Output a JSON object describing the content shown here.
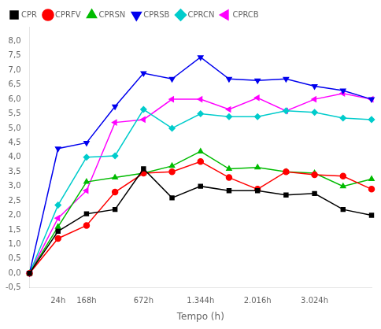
{
  "chart_data": {
    "type": "line",
    "categories": [
      null,
      "24h",
      "168h",
      null,
      "672h",
      null,
      "1.344h",
      null,
      "2.016h",
      null,
      "3.024h",
      null,
      null
    ],
    "series": [
      {
        "name": "CPR",
        "color": "#000000",
        "marker": "square",
        "values": [
          0.0,
          1.45,
          2.05,
          2.2,
          3.6,
          2.6,
          3.0,
          2.85,
          2.85,
          2.7,
          2.75,
          2.2,
          2.0
        ]
      },
      {
        "name": "CPRFV",
        "color": "#ff0000",
        "marker": "circle",
        "values": [
          0.0,
          1.2,
          1.65,
          2.8,
          3.45,
          3.5,
          3.85,
          3.3,
          2.9,
          3.5,
          3.4,
          3.35,
          2.9
        ]
      },
      {
        "name": "CPRSN",
        "color": "#00bb00",
        "marker": "triangle-up",
        "values": [
          0.0,
          1.6,
          3.15,
          3.3,
          3.45,
          3.7,
          4.2,
          3.6,
          3.65,
          3.5,
          3.45,
          3.0,
          3.25
        ]
      },
      {
        "name": "CPRSB",
        "color": "#0000ee",
        "marker": "triangle-down",
        "values": [
          0.0,
          4.3,
          4.5,
          5.75,
          6.9,
          6.7,
          7.45,
          6.7,
          6.65,
          6.7,
          6.45,
          6.3,
          6.0
        ]
      },
      {
        "name": "CPRCN",
        "color": "#00cccc",
        "marker": "diamond",
        "values": [
          0.0,
          2.35,
          4.0,
          4.05,
          5.65,
          5.0,
          5.5,
          5.4,
          5.4,
          5.6,
          5.55,
          5.35,
          5.3
        ]
      },
      {
        "name": "CPRCB",
        "color": "#ff00ff",
        "marker": "triangle-left",
        "values": [
          0.0,
          1.9,
          2.85,
          5.2,
          5.3,
          6.0,
          6.0,
          5.65,
          6.05,
          5.6,
          6.0,
          6.2,
          6.0
        ]
      }
    ],
    "xlabel": "Tempo (h)",
    "ylim": [
      -0.5,
      8.5
    ],
    "yticks": [
      {
        "value": -0.5,
        "label": "-0,5"
      },
      {
        "value": 0.0,
        "label": "0,0"
      },
      {
        "value": 0.5,
        "label": "0,5"
      },
      {
        "value": 1.0,
        "label": "1,0"
      },
      {
        "value": 1.5,
        "label": "1,5"
      },
      {
        "value": 2.0,
        "label": "2,0"
      },
      {
        "value": 2.5,
        "label": "2,5"
      },
      {
        "value": 3.0,
        "label": "3,0"
      },
      {
        "value": 3.5,
        "label": "3,5"
      },
      {
        "value": 4.0,
        "label": "4,0"
      },
      {
        "value": 4.5,
        "label": "4,5"
      },
      {
        "value": 5.0,
        "label": "5,0"
      },
      {
        "value": 5.5,
        "label": "5,5"
      },
      {
        "value": 6.0,
        "label": "6,0"
      },
      {
        "value": 6.5,
        "label": "6,5"
      },
      {
        "value": 7.0,
        "label": "7,0"
      },
      {
        "value": 7.5,
        "label": "7,5"
      },
      {
        "value": 8.0,
        "label": "8,0"
      }
    ],
    "grid": false,
    "legend": "top-left"
  }
}
